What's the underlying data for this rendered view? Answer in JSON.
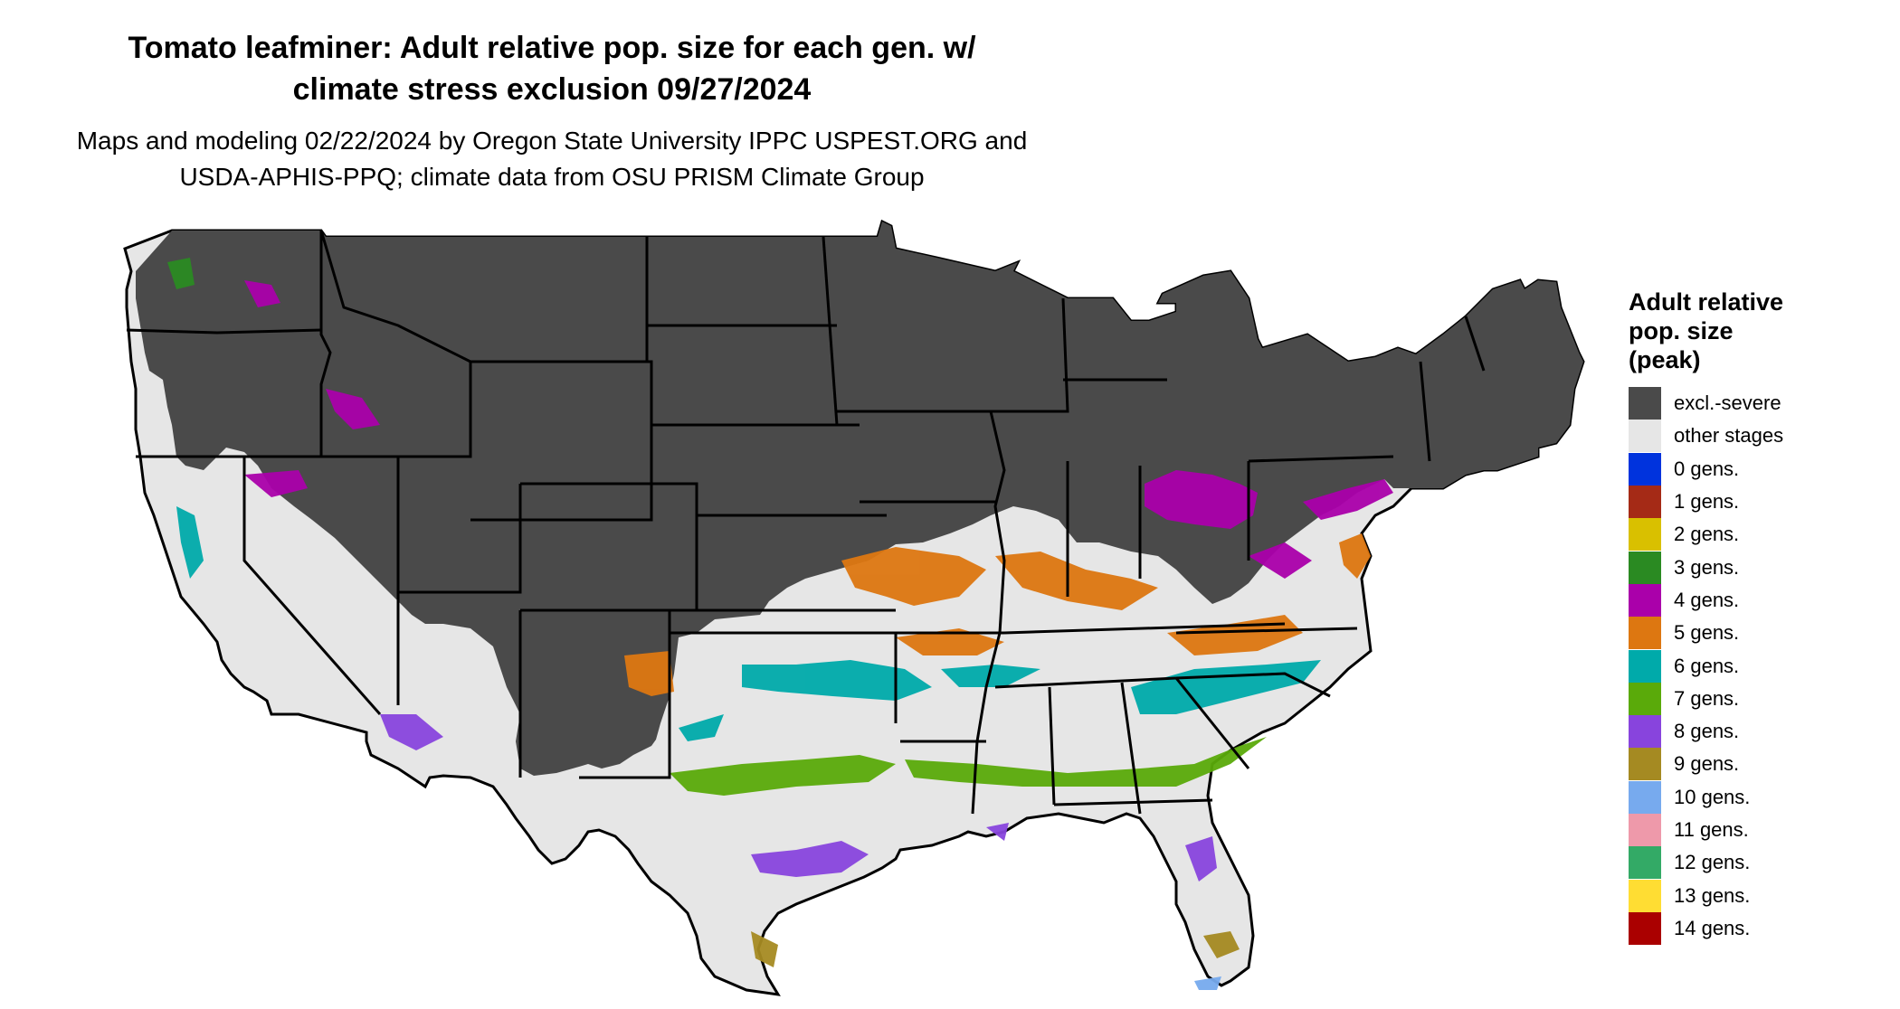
{
  "title": {
    "line1": "Tomato leafminer: Adult relative pop. size for each gen. w/",
    "line2": "climate stress exclusion 09/27/2024"
  },
  "subtitle": {
    "line1": "Maps and modeling 02/22/2024 by Oregon State University IPPC USPEST.ORG and",
    "line2": "USDA-APHIS-PPQ; climate data from OSU PRISM Climate Group"
  },
  "legend": {
    "title_lines": [
      "Adult relative",
      "pop. size",
      "(peak)"
    ],
    "items": [
      {
        "label": "excl.-severe",
        "color": "#4a4a4a"
      },
      {
        "label": "other stages",
        "color": "#e6e6e6"
      },
      {
        "label": "0 gens.",
        "color": "#0033dd"
      },
      {
        "label": "1 gens.",
        "color": "#a52a16"
      },
      {
        "label": "2 gens.",
        "color": "#d9c000"
      },
      {
        "label": "3 gens.",
        "color": "#2a8a22"
      },
      {
        "label": "4 gens.",
        "color": "#aa00aa"
      },
      {
        "label": "5 gens.",
        "color": "#dd7711"
      },
      {
        "label": "6 gens.",
        "color": "#00aaaa"
      },
      {
        "label": "7 gens.",
        "color": "#5aaa0a"
      },
      {
        "label": "8 gens.",
        "color": "#8844dd"
      },
      {
        "label": "9 gens.",
        "color": "#a58a22"
      },
      {
        "label": "10 gens.",
        "color": "#77aaee"
      },
      {
        "label": "11 gens.",
        "color": "#ee99aa"
      },
      {
        "label": "12 gens.",
        "color": "#33aa66"
      },
      {
        "label": "13 gens.",
        "color": "#ffdd33"
      },
      {
        "label": "14 gens.",
        "color": "#aa0000"
      }
    ]
  }
}
